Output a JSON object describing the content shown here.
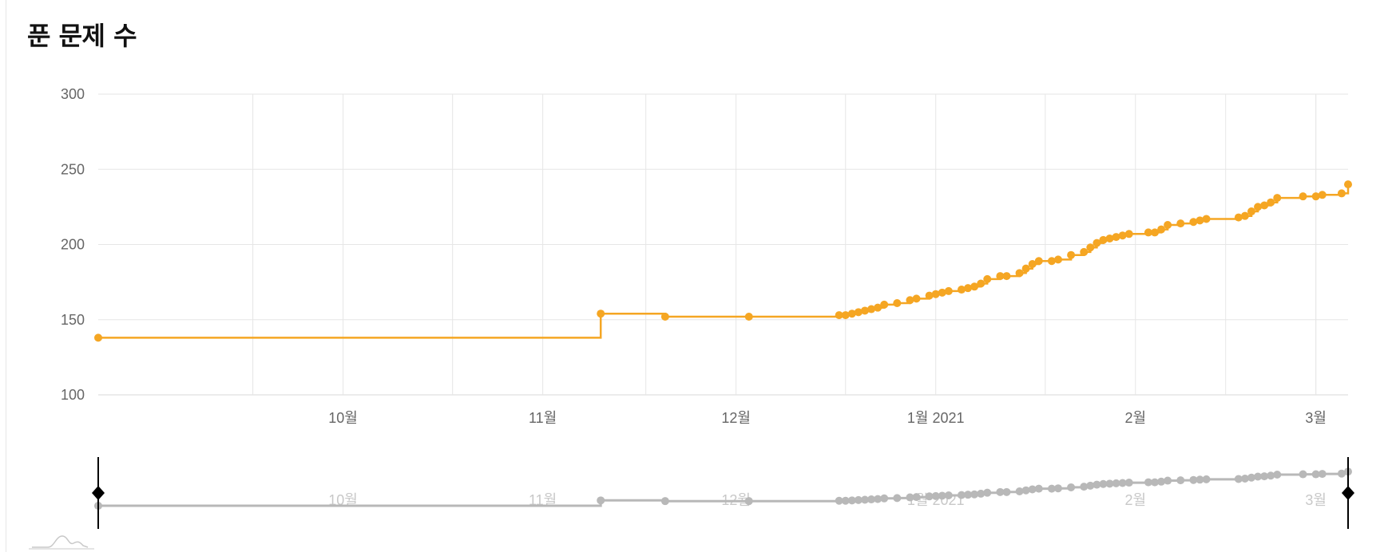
{
  "title": "푼 문제 수",
  "colors": {
    "series": "#f5a623",
    "navigator_series": "#b8b8b8",
    "grid": "#e6e6e6",
    "tick_text": "#666666",
    "navigator_tick_text": "#c8c8c8",
    "handle": "#000000"
  },
  "chart_data": {
    "type": "line",
    "step": true,
    "grid": true,
    "legend": "none",
    "xlim": [
      "2020-09-07",
      "2021-03-20"
    ],
    "ylim": [
      100,
      300
    ],
    "y_ticks": [
      100,
      150,
      200,
      250,
      300
    ],
    "x_ticks": [
      {
        "date": "2020-10-01",
        "label": "10월"
      },
      {
        "date": "2020-11-01",
        "label": "11월"
      },
      {
        "date": "2020-12-01",
        "label": "12월"
      },
      {
        "date": "2021-01-01",
        "label": "1월 2021"
      },
      {
        "date": "2021-02-01",
        "label": "2월"
      },
      {
        "date": "2021-03-01",
        "label": "3월"
      }
    ],
    "series": [
      {
        "points": [
          [
            "2020-09-07",
            138
          ],
          [
            "2020-11-24",
            154
          ],
          [
            "2020-12-04",
            152
          ],
          [
            "2020-12-17",
            152
          ],
          [
            "2020-12-31",
            153
          ],
          [
            "2021-01-01",
            153
          ],
          [
            "2021-01-02",
            154
          ],
          [
            "2021-01-03",
            155
          ],
          [
            "2021-01-04",
            156
          ],
          [
            "2021-01-05",
            157
          ],
          [
            "2021-01-06",
            158
          ],
          [
            "2021-01-07",
            160
          ],
          [
            "2021-01-09",
            161
          ],
          [
            "2021-01-11",
            163
          ],
          [
            "2021-01-12",
            164
          ],
          [
            "2021-01-14",
            166
          ],
          [
            "2021-01-15",
            167
          ],
          [
            "2021-01-16",
            168
          ],
          [
            "2021-01-17",
            169
          ],
          [
            "2021-01-19",
            170
          ],
          [
            "2021-01-20",
            171
          ],
          [
            "2021-01-21",
            172
          ],
          [
            "2021-01-22",
            174
          ],
          [
            "2021-01-23",
            177
          ],
          [
            "2021-01-25",
            179
          ],
          [
            "2021-01-26",
            179
          ],
          [
            "2021-01-28",
            181
          ],
          [
            "2021-01-29",
            184
          ],
          [
            "2021-01-30",
            187
          ],
          [
            "2021-01-31",
            189
          ],
          [
            "2021-02-02",
            189
          ],
          [
            "2021-02-03",
            190
          ],
          [
            "2021-02-05",
            193
          ],
          [
            "2021-02-07",
            195
          ],
          [
            "2021-02-08",
            198
          ],
          [
            "2021-02-09",
            201
          ],
          [
            "2021-02-10",
            203
          ],
          [
            "2021-02-11",
            204
          ],
          [
            "2021-02-12",
            205
          ],
          [
            "2021-02-13",
            206
          ],
          [
            "2021-02-14",
            207
          ],
          [
            "2021-02-17",
            208
          ],
          [
            "2021-02-18",
            208
          ],
          [
            "2021-02-19",
            210
          ],
          [
            "2021-02-20",
            213
          ],
          [
            "2021-02-22",
            214
          ],
          [
            "2021-02-24",
            215
          ],
          [
            "2021-02-25",
            216
          ],
          [
            "2021-02-26",
            217
          ],
          [
            "2021-03-03",
            218
          ],
          [
            "2021-03-04",
            219
          ],
          [
            "2021-03-05",
            222
          ],
          [
            "2021-03-06",
            225
          ],
          [
            "2021-03-07",
            226
          ],
          [
            "2021-03-08",
            228
          ],
          [
            "2021-03-09",
            231
          ],
          [
            "2021-03-13",
            232
          ],
          [
            "2021-03-15",
            232
          ],
          [
            "2021-03-16",
            233
          ],
          [
            "2021-03-19",
            234
          ],
          [
            "2021-03-20",
            240
          ]
        ]
      }
    ]
  }
}
